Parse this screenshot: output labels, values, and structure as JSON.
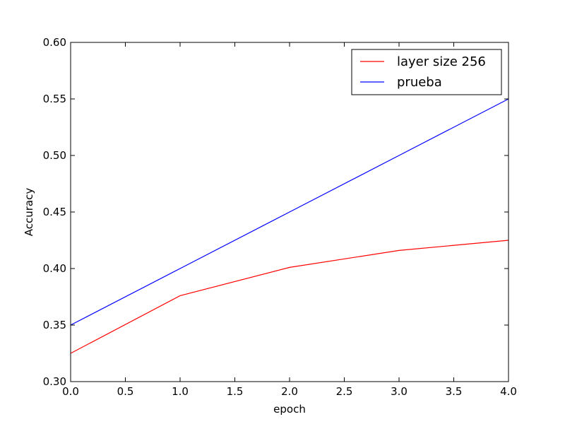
{
  "chart_data": {
    "type": "line",
    "title": "",
    "xlabel": "epoch",
    "ylabel": "Accuracy",
    "xlim": [
      0.0,
      4.0
    ],
    "ylim": [
      0.3,
      0.6
    ],
    "x_ticks": [
      "0.0",
      "0.5",
      "1.0",
      "1.5",
      "2.0",
      "2.5",
      "3.0",
      "3.5",
      "4.0"
    ],
    "y_ticks": [
      "0.30",
      "0.35",
      "0.40",
      "0.45",
      "0.50",
      "0.55",
      "0.60"
    ],
    "grid": false,
    "legend_position": "top-right",
    "series": [
      {
        "name": "layer size 256",
        "color": "#ff0000",
        "x": [
          0,
          1,
          2,
          3,
          4
        ],
        "y": [
          0.325,
          0.376,
          0.401,
          0.416,
          0.425
        ]
      },
      {
        "name": "prueba",
        "color": "#0000ff",
        "x": [
          0,
          1,
          2,
          3,
          4
        ],
        "y": [
          0.35,
          0.4,
          0.45,
          0.5,
          0.55
        ]
      }
    ]
  }
}
